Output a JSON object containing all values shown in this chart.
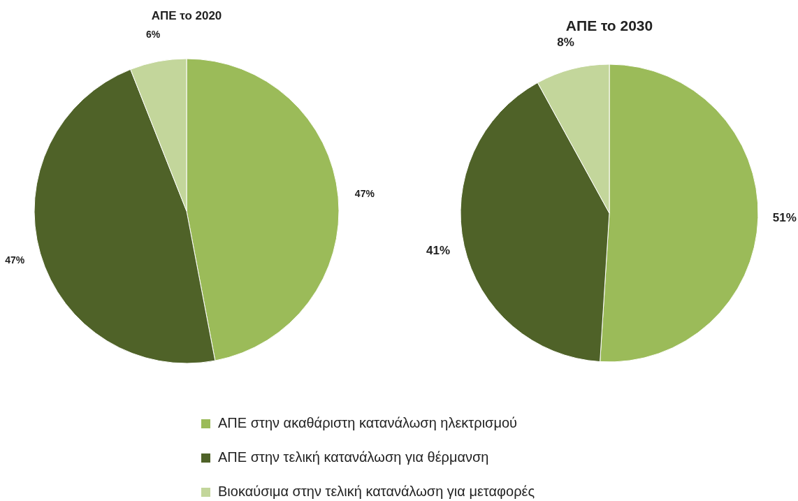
{
  "chart_data": [
    {
      "type": "pie",
      "title": "ΑΠΕ το 2020",
      "categories": [
        "ΑΠΕ στην ακαθάριστη κατανάλωση ηλεκτρισμού",
        "ΑΠΕ στην τελική κατανάλωση για θέρμανση",
        "Βιοκαύσιμα στην τελική κατανάλωση για μεταφορές"
      ],
      "values": [
        47,
        47,
        6
      ],
      "value_labels": [
        "47%",
        "47%",
        "6%"
      ],
      "colors": [
        "#9bbb59",
        "#4f6228",
        "#c3d69b"
      ],
      "legend": "bottom"
    },
    {
      "type": "pie",
      "title": "ΑΠΕ το 2030",
      "categories": [
        null,
        null,
        null
      ],
      "values": [
        51,
        41,
        8
      ],
      "value_labels": [
        "51%",
        "41%",
        "8%"
      ],
      "colors": [
        "#9bbb59",
        "#4f6228",
        "#c3d69b"
      ]
    }
  ]
}
